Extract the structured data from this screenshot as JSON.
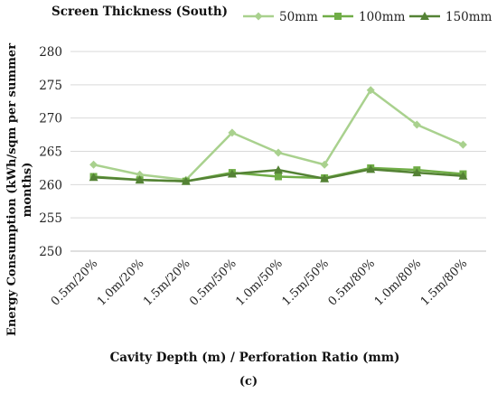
{
  "chart_data": {
    "type": "line",
    "title": "Screen Thickness (South)",
    "xlabel": "Cavity Depth (m) / Perforation Ratio (mm)",
    "ylabel": "Energy Consumption (kWh/sqm per summer months)",
    "caption": "(c)",
    "ylim": [
      250,
      280
    ],
    "yticks": [
      250,
      255,
      260,
      265,
      270,
      275,
      280
    ],
    "grid": "horizontal",
    "legend_position": "top-right",
    "categories": [
      "0.5m/20%",
      "1.0m/20%",
      "1.5m/20%",
      "0.5m/50%",
      "1.0m/50%",
      "1.5m/50%",
      "0.5m/80%",
      "1.0m/80%",
      "1.5m/80%"
    ],
    "series": [
      {
        "name": "50mm",
        "color": "#a9d18e",
        "marker": "diamond",
        "values": [
          263.0,
          261.5,
          260.7,
          267.8,
          264.8,
          263.0,
          274.2,
          269.0,
          266.0
        ]
      },
      {
        "name": "100mm",
        "color": "#70ad47",
        "marker": "square",
        "values": [
          261.2,
          260.7,
          260.5,
          261.8,
          261.2,
          261.0,
          262.5,
          262.2,
          261.6
        ]
      },
      {
        "name": "150mm",
        "color": "#548235",
        "marker": "triangle",
        "values": [
          261.1,
          260.7,
          260.5,
          261.6,
          262.2,
          260.9,
          262.3,
          261.8,
          261.3
        ]
      }
    ]
  }
}
